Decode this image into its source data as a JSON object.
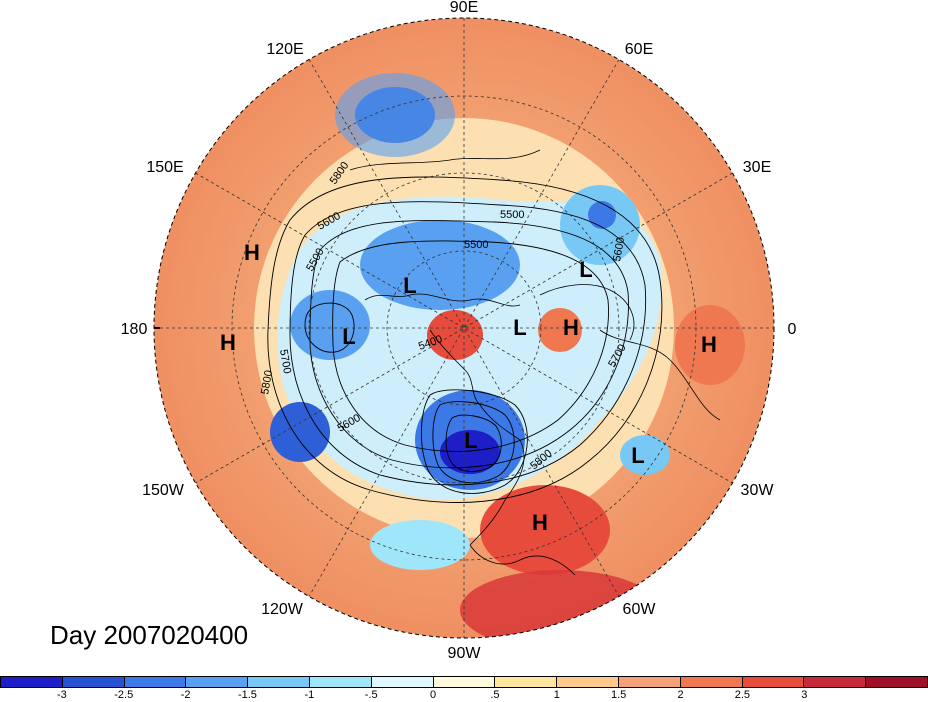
{
  "title": "Day 2007020400",
  "longitude_labels": [
    "90E",
    "60E",
    "30E",
    "0",
    "30W",
    "60W",
    "90W",
    "120W",
    "150W",
    "180",
    "150E",
    "120E"
  ],
  "pressure_systems": [
    {
      "type": "H",
      "label": "H"
    },
    {
      "type": "H",
      "label": "H"
    },
    {
      "type": "L",
      "label": "L"
    },
    {
      "type": "L",
      "label": "L"
    },
    {
      "type": "L",
      "label": "L"
    },
    {
      "type": "L",
      "label": "L"
    },
    {
      "type": "H",
      "label": "H"
    },
    {
      "type": "L",
      "label": "L"
    },
    {
      "type": "H",
      "label": "H"
    },
    {
      "type": "L",
      "label": "L"
    },
    {
      "type": "H",
      "label": "H"
    }
  ],
  "contour_labels": [
    "5800",
    "5600",
    "5500",
    "5500",
    "5600",
    "5700",
    "5800",
    "5600",
    "5400",
    "5700",
    "5800",
    "5500"
  ],
  "colorbar": {
    "colors": [
      "#1e1ec8",
      "#2850d2",
      "#3c78e6",
      "#5aa0f0",
      "#78c8f5",
      "#a0e6fa",
      "#e0f8ff",
      "#fffadc",
      "#ffe6a0",
      "#ffc88c",
      "#f5a078",
      "#f07850",
      "#e64b3c",
      "#c8283c",
      "#a00f28"
    ],
    "tick_labels": [
      "-3",
      "-2.5",
      "-2",
      "-1.5",
      "-1",
      "-.5",
      "0",
      ".5",
      "1",
      "1.5",
      "2",
      "2.5",
      "3"
    ]
  }
}
